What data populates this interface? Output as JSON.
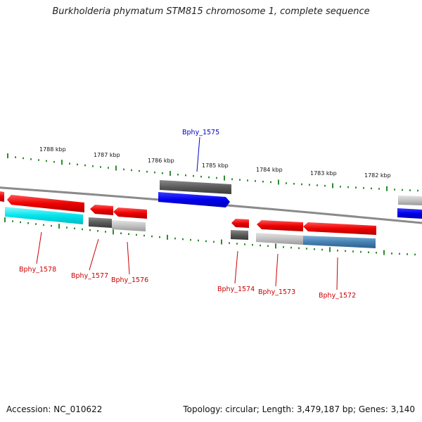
{
  "title": "Burkholderia phymatum STM815 chromosome 1, complete sequence",
  "accession": "Accession: NC_010622",
  "topology": "Topology: circular; Length: 3,479,187 bp; Genes: 3,140",
  "colors": {
    "backbone": "#8a8a8a",
    "tick": "#2e8b2e",
    "label_red": "#cc0000",
    "label_blue": "#0000cc",
    "forward_gene": "#0000ee",
    "reverse_gene": "#ee0000",
    "cyan_feature": "#00e5ee",
    "dark_gray_feature": "#5a5a5a",
    "light_gray_feature": "#c2c2c2",
    "steel_blue_feature": "#4682b4"
  },
  "scale_labels": [
    "1788 kbp",
    "1787 kbp",
    "1786 kbp",
    "1785 kbp",
    "1784 kbp",
    "1783 kbp",
    "1782 kbp"
  ],
  "genes": [
    {
      "label": "Bphy_1578",
      "strand": "reverse",
      "color": "red"
    },
    {
      "label": "Bphy_1577",
      "strand": "reverse",
      "color": "red"
    },
    {
      "label": "Bphy_1576",
      "strand": "reverse",
      "color": "red"
    },
    {
      "label": "Bphy_1575",
      "strand": "forward",
      "color": "blue"
    },
    {
      "label": "Bphy_1574",
      "strand": "reverse",
      "color": "red"
    },
    {
      "label": "Bphy_1573",
      "strand": "reverse",
      "color": "red"
    },
    {
      "label": "Bphy_1572",
      "strand": "reverse",
      "color": "red"
    }
  ]
}
